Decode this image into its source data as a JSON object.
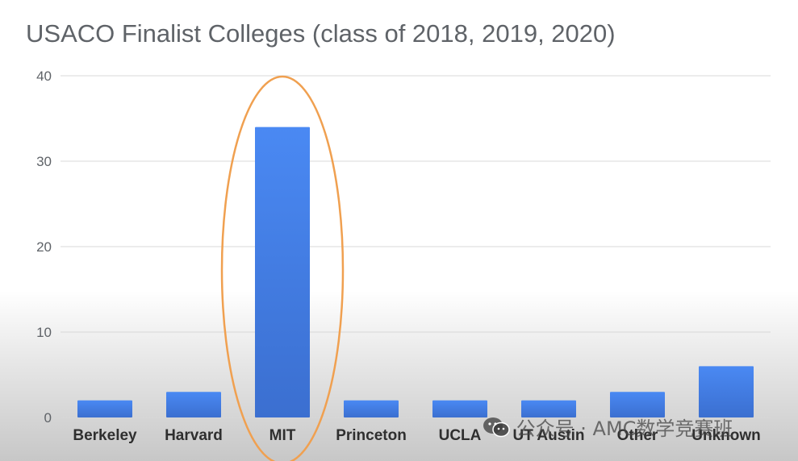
{
  "chart_data": {
    "type": "bar",
    "title": "USACO Finalist Colleges (class of 2018, 2019, 2020)",
    "xlabel": "",
    "ylabel": "",
    "categories": [
      "Berkeley",
      "Harvard",
      "MIT",
      "Princeton",
      "UCLA",
      "UT Austin",
      "Other",
      "Unknown"
    ],
    "values": [
      2,
      3,
      34,
      2,
      2,
      2,
      3,
      6
    ],
    "ylim": [
      0,
      40
    ],
    "yticks": [
      0,
      10,
      20,
      30,
      40
    ],
    "grid": true,
    "legend": "none",
    "highlight_category": "MIT",
    "colors": {
      "bar": "#4a89f3",
      "bar_dark": "#3b6fd0",
      "highlight_ellipse": "#f0a050",
      "gridline": "#d8d8d8",
      "tick_text": "#5f6368",
      "category_text": "#2f2f2f"
    }
  },
  "watermark": {
    "icon": "wechat-icon",
    "text": "公众号 · AMC数学竞赛班"
  }
}
